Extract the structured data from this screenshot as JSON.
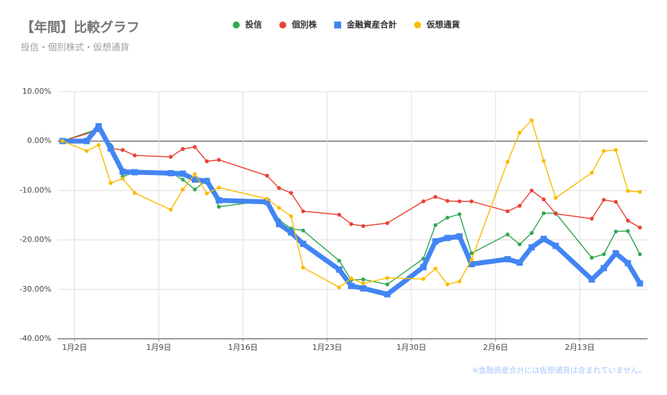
{
  "chart_data": {
    "type": "line",
    "title": "【年間】比較グラフ",
    "subtitle": "投信・個別株式・仮想通貨",
    "annotation": "※金融資産合計には仮想通貨は含まれていません。",
    "xlim": [
      "01-01",
      "02-18"
    ],
    "xticks": [
      {
        "value": "01-02",
        "label": "1月2日"
      },
      {
        "value": "01-09",
        "label": "1月9日"
      },
      {
        "value": "01-16",
        "label": "1月16日"
      },
      {
        "value": "01-23",
        "label": "1月23日"
      },
      {
        "value": "01-30",
        "label": "1月30日"
      },
      {
        "value": "02-06",
        "label": "2月6日"
      },
      {
        "value": "02-13",
        "label": "2月13日"
      }
    ],
    "ylim": [
      -40,
      10
    ],
    "yticks": [
      {
        "value": -40,
        "label": "-40.00%"
      },
      {
        "value": -30,
        "label": "-30.00%"
      },
      {
        "value": -20,
        "label": "-20.00%"
      },
      {
        "value": -10,
        "label": "-10.00%"
      },
      {
        "value": 0,
        "label": "0.00%"
      },
      {
        "value": 10,
        "label": "10.00%"
      }
    ],
    "grid": true,
    "legend": "top",
    "series": [
      {
        "name": "投信",
        "color": "#34a853",
        "line_width": 1.5,
        "marker": "circle",
        "x": [
          "01-01",
          "01-04",
          "01-05",
          "01-06",
          "01-07",
          "01-10",
          "01-11",
          "01-12",
          "01-13",
          "01-14",
          "01-18",
          "01-19",
          "01-20",
          "01-21",
          "01-24",
          "01-25",
          "01-26",
          "01-28",
          "01-31",
          "02-01",
          "02-02",
          "02-03",
          "02-04",
          "02-07",
          "02-08",
          "02-09",
          "02-10",
          "02-11",
          "02-14",
          "02-15",
          "02-16",
          "02-17",
          "02-18"
        ],
        "values": [
          0,
          2.5,
          -0.8,
          -7.2,
          -6.3,
          -6.4,
          -7.8,
          -9.8,
          -7.8,
          -13.3,
          -12,
          -16,
          -17.7,
          -18.1,
          -24.2,
          -28.1,
          -28,
          -29,
          -23.8,
          -17,
          -15.5,
          -14.8,
          -22.7,
          -18.9,
          -20.9,
          -18.6,
          -14.6,
          -14.6,
          -23.6,
          -22.9,
          -18.3,
          -18.2,
          -22.9
        ]
      },
      {
        "name": "個別株",
        "color": "#ea4335",
        "line_width": 1.5,
        "marker": "circle",
        "x": [
          "01-01",
          "01-04",
          "01-05",
          "01-06",
          "01-07",
          "01-10",
          "01-11",
          "01-12",
          "01-13",
          "01-14",
          "01-18",
          "01-19",
          "01-20",
          "01-21",
          "01-24",
          "01-25",
          "01-26",
          "01-28",
          "01-31",
          "02-01",
          "02-02",
          "02-03",
          "02-04",
          "02-07",
          "02-08",
          "02-09",
          "02-10",
          "02-11",
          "02-14",
          "02-15",
          "02-16",
          "02-17",
          "02-18"
        ],
        "values": [
          0,
          2.2,
          -1.5,
          -1.8,
          -2.9,
          -3.2,
          -1.6,
          -1.2,
          -4.1,
          -3.8,
          -7,
          -9.5,
          -10.5,
          -14.2,
          -14.9,
          -16.8,
          -17.2,
          -16.6,
          -12.2,
          -11.3,
          -12.1,
          -12.2,
          -12.2,
          -14.2,
          -13.1,
          -10,
          -11.8,
          -14.7,
          -15.7,
          -11.9,
          -12.3,
          -16.1,
          -17.5
        ]
      },
      {
        "name": "金融資産合計",
        "color": "#4285f4",
        "line_width": 7,
        "marker": "square",
        "x": [
          "01-01",
          "01-03",
          "01-04",
          "01-05",
          "01-06",
          "01-07",
          "01-10",
          "01-11",
          "01-12",
          "01-13",
          "01-14",
          "01-18",
          "01-19",
          "01-20",
          "01-21",
          "01-24",
          "01-25",
          "01-26",
          "01-28",
          "01-31",
          "02-01",
          "02-02",
          "02-03",
          "02-04",
          "02-07",
          "02-08",
          "02-09",
          "02-10",
          "02-11",
          "02-14",
          "02-15",
          "02-16",
          "02-17",
          "02-18"
        ],
        "values": [
          0,
          0,
          3,
          -1.5,
          -6.2,
          -6.3,
          -6.5,
          -6.6,
          -7.8,
          -8.1,
          -12,
          -12.3,
          -16.8,
          -18.5,
          -20.8,
          -26,
          -29.3,
          -29.8,
          -31,
          -25.5,
          -20.3,
          -19.6,
          -19.3,
          -24.9,
          -23.9,
          -24.6,
          -21.5,
          -19.8,
          -21.2,
          -28,
          -25.7,
          -22.7,
          -24.7,
          -28.8
        ]
      },
      {
        "name": "仮想通貨",
        "color": "#fbbc04",
        "line_width": 1.5,
        "marker": "circle",
        "x": [
          "01-01",
          "01-03",
          "01-04",
          "01-05",
          "01-06",
          "01-07",
          "01-10",
          "01-11",
          "01-12",
          "01-13",
          "01-14",
          "01-18",
          "01-19",
          "01-20",
          "01-21",
          "01-24",
          "01-25",
          "01-26",
          "01-28",
          "01-31",
          "02-01",
          "02-02",
          "02-03",
          "02-04",
          "02-07",
          "02-08",
          "02-09",
          "02-10",
          "02-11",
          "02-14",
          "02-15",
          "02-16",
          "02-17",
          "02-18"
        ],
        "values": [
          0,
          -2,
          -0.8,
          -8.5,
          -7.6,
          -10.5,
          -13.9,
          -9.8,
          -6.7,
          -10.6,
          -9.4,
          -11.7,
          -13.5,
          -15.2,
          -25.6,
          -29.6,
          -27.8,
          -28.8,
          -27.7,
          -27.9,
          -25.8,
          -29,
          -28.4,
          -24,
          -4.2,
          1.7,
          4.2,
          -4,
          -11.5,
          -6.4,
          -2,
          -1.8,
          -10.1,
          -10.3
        ]
      }
    ]
  }
}
